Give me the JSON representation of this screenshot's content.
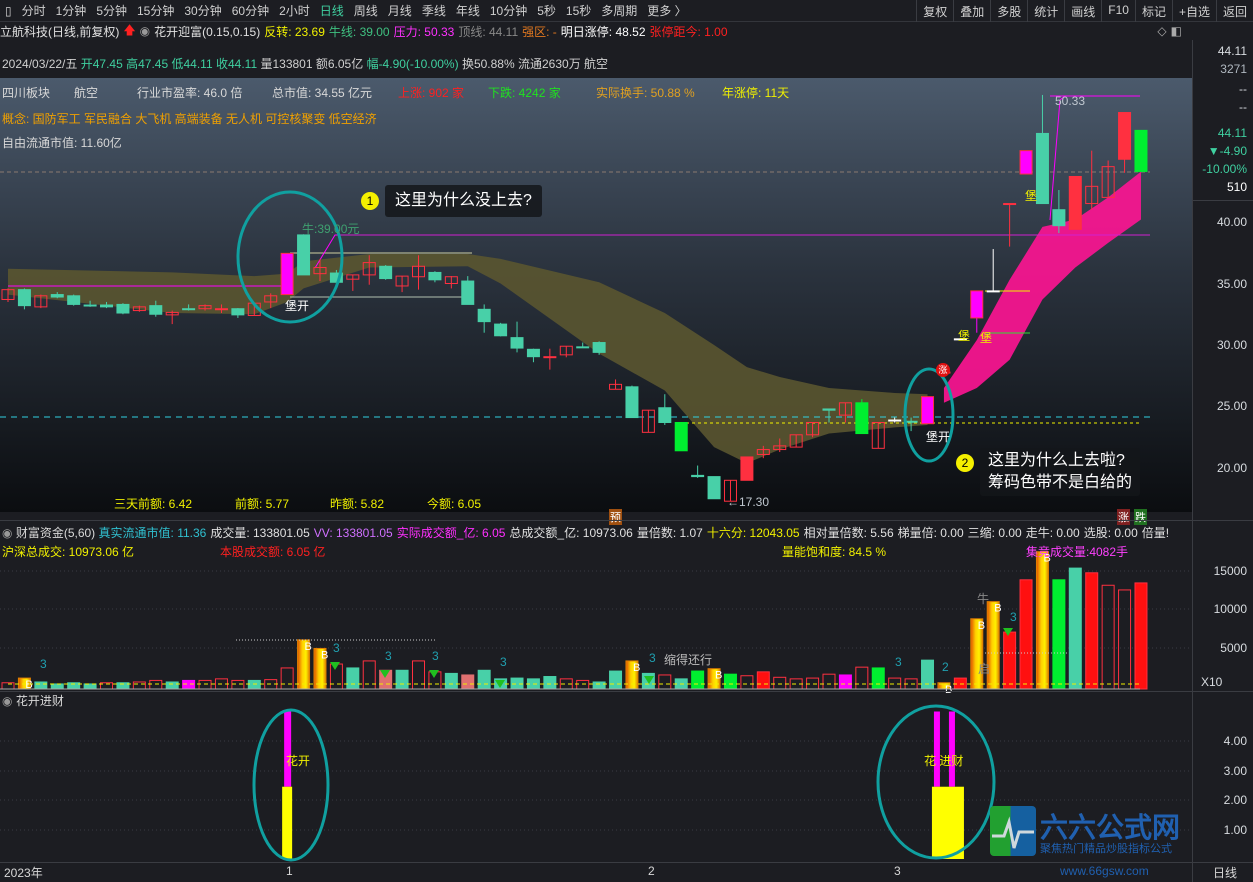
{
  "toolbar": {
    "periods": [
      "分时",
      "1分钟",
      "5分钟",
      "15分钟",
      "30分钟",
      "60分钟",
      "2小时",
      "日线",
      "周线",
      "月线",
      "季线",
      "年线",
      "10分钟",
      "5秒",
      "15秒",
      "多周期",
      "更多 〉"
    ],
    "active": "日线",
    "right_buttons": [
      "复权",
      "叠加",
      "多股",
      "统计",
      "画线",
      "F10",
      "标记",
      "+自选",
      "返回"
    ]
  },
  "info": {
    "stock": "立航科技(日线,前复权)",
    "indicator": "花开迎富(0.15,0.15)",
    "items": [
      {
        "label": "反转: 23.69",
        "color": "#f0f000"
      },
      {
        "label": "牛线: 39.00",
        "color": "#3fc080"
      },
      {
        "label": "压力: 50.33",
        "color": "#ff30ff"
      },
      {
        "label": "顶线: 44.11",
        "color": "#888888"
      },
      {
        "label": "强区: -",
        "color": "#e07820"
      },
      {
        "label": "明日涨停: 48.52",
        "color": "#ffffff"
      },
      {
        "label": "张停距今: 1.00",
        "color": "#ff2020"
      }
    ]
  },
  "dateline": {
    "date": "2024/03/22/五",
    "open": "开47.45",
    "high": "高47.45",
    "low": "低44.11",
    "close": "收44.11",
    "vol": "量133801",
    "amt": "额6.05亿",
    "chg": "幅-4.90(-10.00%)",
    "turn": "换50.88%",
    "float": "流通2630万",
    "sector": "航空"
  },
  "stats": {
    "region": "四川板块",
    "industry": "航空",
    "pe": "行业市盈率:  46.0 倍",
    "mcap": "总市值:  34.55 亿元",
    "up": "上涨:  902 家",
    "down": "下跌:  4242 家",
    "turnover": "实际换手: 50.88 %",
    "limitdays": "年涨停: 11天",
    "concepts": "概念:   国防军工 军民融合 大飞机 高端装备 无人机 可控核聚变 低空经济",
    "freefloat": "自由流通市值:  11.60亿"
  },
  "amounts": [
    "三天前额: 6.42",
    "前额: 5.77",
    "昨额: 5.82",
    "今额: 6.05"
  ],
  "annotations": {
    "q1_num": "1",
    "q1": "这里为什么没上去?",
    "q2_num": "2",
    "q2_line1": "这里为什么上去啦?",
    "q2_line2": "筹码色带不是白给的",
    "bull_label": "牛:39.00元",
    "high_label": "50.33",
    "low_label": "←17.30",
    "open1": "堡开",
    "open2": "堡开",
    "fort1": "堡",
    "fort2": "堡",
    "fort3": "堡",
    "turn_num": "50",
    "turn": "转",
    "pre": "预",
    "up": "涨",
    "down": "跌",
    "limit_icon": "涨"
  },
  "right_panel": {
    "price": "44.11",
    "vol": "3271",
    "a": "--",
    "b": "--",
    "last": "44.11",
    "chg": "▼-4.90",
    "pct": "-10.00%",
    "n": "510"
  },
  "price_axis": [
    "40.00",
    "35.00",
    "30.00",
    "25.00",
    "20.00"
  ],
  "vol_header": {
    "name": "财富资金(5,60)",
    "items": [
      {
        "t": "真实流通市值: 11.36",
        "c": "#30c0d0"
      },
      {
        "t": "成交量: 133801.05",
        "c": "#e0e0e0"
      },
      {
        "t": "VV: 133801.05",
        "c": "#d070ff"
      },
      {
        "t": "实际成交额_亿: 6.05",
        "c": "#ff30ff"
      },
      {
        "t": "总成交额_亿: 10973.06",
        "c": "#e0e0e0"
      },
      {
        "t": "量倍数: 1.07",
        "c": "#e0e0e0"
      },
      {
        "t": "十六分: 12043.05",
        "c": "#f0f000"
      },
      {
        "t": "相对量倍数: 5.56",
        "c": "#e0e0e0"
      },
      {
        "t": "梯量倍: 0.00",
        "c": "#e0e0e0"
      },
      {
        "t": "三缩: 0.00",
        "c": "#e0e0e0"
      },
      {
        "t": "走牛: 0.00",
        "c": "#e0e0e0"
      },
      {
        "t": "选股: 0.00",
        "c": "#e0e0e0"
      },
      {
        "t": "倍量!",
        "c": "#e0e0e0"
      }
    ],
    "line2": [
      {
        "t": "沪深总成交:  10973.06 亿",
        "c": "#f0f000"
      },
      {
        "t": "本股成交额:  6.05 亿",
        "c": "#ff2020"
      },
      {
        "t": "量能饱和度: 84.5 %",
        "c": "#f0f000"
      },
      {
        "t": "集竞成交量:4082手",
        "c": "#ff40ff"
      }
    ]
  },
  "vol_axis": [
    "15000",
    "10000",
    "5000",
    "X10"
  ],
  "vol_labels": {
    "shrink": "缩得还行",
    "bull": "牛",
    "start": "启",
    "two": "2",
    "b": "B",
    "three": "3"
  },
  "sub": {
    "title": "花开进财",
    "label1": "花开",
    "label2": "花 进财",
    "axis": [
      "4.00",
      "3.00",
      "2.00",
      "1.00"
    ]
  },
  "xaxis": [
    "2023年",
    "1",
    "2",
    "3",
    "日线"
  ],
  "logo": {
    "name": "六六公式网",
    "slogan": "聚焦热门精品炒股指标公式",
    "url": "www.66gsw.com"
  },
  "colors": {
    "up": "#ff3040",
    "down": "#48d0a8",
    "bright_down": "#00ee30",
    "signal": "#ff00ff",
    "chip_band": "#5a5530",
    "pink_band": "#ff1493",
    "circle": "#10a0a0"
  },
  "chart_data": {
    "type": "candlestick",
    "price_range": [
      17,
      52
    ],
    "candles": [
      [
        33.7,
        34.6,
        33.5,
        34.5,
        "u"
      ],
      [
        34.5,
        34.6,
        32.9,
        33.2,
        "d"
      ],
      [
        33.1,
        34.1,
        33.0,
        34.0,
        "u"
      ],
      [
        34.1,
        34.3,
        33.8,
        33.9,
        "d"
      ],
      [
        34.0,
        34.1,
        33.2,
        33.3,
        "d"
      ],
      [
        33.25,
        33.6,
        33.1,
        33.2,
        "d"
      ],
      [
        33.25,
        33.5,
        33.0,
        33.1,
        "d"
      ],
      [
        33.3,
        33.4,
        32.5,
        32.6,
        "d"
      ],
      [
        32.8,
        33.2,
        32.7,
        33.1,
        "u"
      ],
      [
        33.2,
        33.6,
        32.3,
        32.5,
        "d"
      ],
      [
        32.45,
        32.8,
        31.7,
        32.65,
        "u"
      ],
      [
        32.95,
        33.3,
        32.8,
        32.9,
        "d"
      ],
      [
        32.95,
        33.3,
        32.8,
        33.2,
        "u"
      ],
      [
        32.9,
        33.3,
        32.6,
        32.95,
        "u"
      ],
      [
        32.95,
        33.0,
        32.2,
        32.45,
        "d"
      ],
      [
        32.4,
        33.4,
        32.4,
        33.4,
        "u"
      ],
      [
        33.5,
        34.2,
        33.0,
        34.0,
        "u"
      ],
      [
        34.1,
        37.45,
        34.1,
        37.45,
        "m"
      ],
      [
        38.95,
        39.0,
        35.7,
        35.7,
        "d"
      ],
      [
        35.8,
        37.0,
        35.2,
        36.3,
        "u"
      ],
      [
        35.85,
        36.1,
        34.6,
        35.1,
        "d"
      ],
      [
        35.35,
        35.7,
        34.4,
        35.7,
        "u"
      ],
      [
        35.7,
        37.3,
        34.9,
        36.7,
        "u"
      ],
      [
        36.4,
        36.5,
        35.3,
        35.4,
        "d"
      ],
      [
        34.8,
        35.6,
        34.3,
        35.6,
        "u"
      ],
      [
        35.55,
        37.3,
        34.5,
        36.4,
        "u"
      ],
      [
        35.9,
        36.0,
        35.1,
        35.3,
        "d"
      ],
      [
        35.0,
        35.6,
        34.6,
        35.55,
        "u"
      ],
      [
        35.2,
        35.6,
        33.3,
        33.3,
        "d"
      ],
      [
        32.9,
        33.3,
        31.0,
        31.9,
        "d"
      ],
      [
        31.7,
        31.8,
        30.7,
        30.75,
        "d"
      ],
      [
        30.6,
        31.9,
        29.4,
        29.75,
        "d"
      ],
      [
        29.65,
        29.7,
        28.6,
        29.05,
        "d"
      ],
      [
        29.0,
        29.7,
        28.0,
        29.05,
        "u"
      ],
      [
        29.2,
        29.9,
        29.0,
        29.9,
        "u"
      ],
      [
        29.85,
        30.2,
        29.8,
        29.8,
        "d"
      ],
      [
        30.2,
        30.3,
        29.2,
        29.4,
        "d"
      ],
      [
        26.4,
        27.2,
        26.4,
        26.8,
        "u"
      ],
      [
        26.6,
        26.7,
        24.1,
        24.1,
        "d"
      ],
      [
        22.9,
        24.7,
        22.9,
        24.7,
        "u"
      ],
      [
        24.9,
        26.0,
        23.5,
        23.7,
        "d"
      ],
      [
        23.7,
        23.7,
        21.4,
        21.4,
        "D"
      ],
      [
        19.4,
        20.2,
        19.2,
        19.3,
        "d"
      ],
      [
        19.3,
        19.3,
        17.5,
        17.5,
        "d"
      ],
      [
        17.3,
        19.0,
        17.3,
        19.0,
        "u"
      ],
      [
        19.0,
        20.9,
        19.0,
        20.9,
        "U"
      ],
      [
        21.1,
        21.8,
        20.8,
        21.5,
        "u"
      ],
      [
        21.5,
        22.4,
        21.3,
        21.8,
        "u"
      ],
      [
        21.7,
        22.7,
        21.7,
        22.7,
        "u"
      ],
      [
        22.7,
        23.7,
        22.5,
        23.7,
        "u"
      ],
      [
        24.7,
        24.8,
        23.7,
        24.8,
        "d"
      ],
      [
        24.3,
        25.3,
        23.7,
        25.3,
        "u"
      ],
      [
        25.3,
        25.6,
        22.8,
        22.8,
        "D"
      ],
      [
        21.6,
        23.7,
        21.6,
        23.7,
        "u"
      ],
      [
        23.85,
        24.1,
        23.7,
        23.9,
        "w"
      ],
      [
        23.8,
        24.1,
        23.0,
        23.75,
        "d"
      ],
      [
        23.6,
        25.8,
        23.6,
        25.8,
        "m"
      ],
      [
        27.8,
        27.8,
        27.8,
        27.8,
        "U"
      ],
      [
        30.5,
        30.5,
        30.5,
        30.5,
        "w"
      ],
      [
        32.2,
        34.4,
        31.0,
        34.4,
        "m"
      ],
      [
        34.4,
        37.8,
        34.4,
        34.4,
        "w"
      ],
      [
        41.5,
        41.5,
        38.0,
        41.5,
        "U"
      ],
      [
        43.9,
        45.8,
        43.9,
        45.8,
        "m"
      ],
      [
        47.2,
        50.33,
        41.5,
        41.5,
        "d"
      ],
      [
        41.0,
        42.6,
        39.1,
        39.7,
        "d"
      ],
      [
        39.4,
        43.7,
        39.4,
        43.7,
        "U"
      ],
      [
        41.5,
        45.8,
        41.0,
        42.9,
        "u"
      ],
      [
        42.0,
        45.0,
        42.0,
        44.5,
        "u"
      ],
      [
        45.1,
        48.9,
        44.0,
        48.9,
        "U"
      ],
      [
        47.45,
        47.45,
        44.11,
        44.11,
        "D"
      ]
    ],
    "chip_band": {
      "index": [
        0,
        10,
        15,
        17,
        18,
        22,
        28,
        30,
        36,
        40,
        43,
        45,
        47,
        50,
        54,
        56
      ],
      "upper": [
        36.2,
        35.9,
        35.6,
        35.8,
        36.8,
        37.4,
        37.4,
        37.0,
        35.1,
        32.6,
        30.0,
        28.2,
        27.4,
        26.5,
        26.1,
        26.0
      ],
      "lower": [
        34.1,
        32.6,
        32.5,
        33.5,
        34.6,
        36.3,
        36.4,
        35.0,
        29.3,
        26.3,
        21.7,
        20.4,
        21.5,
        22.8,
        23.3,
        23.5
      ]
    },
    "pink_band": {
      "index": [
        57,
        59,
        61,
        63,
        65,
        67,
        69
      ],
      "upper": [
        26.5,
        30.4,
        35.3,
        39.6,
        40.2,
        42.0,
        44.1
      ],
      "lower": [
        25.3,
        26.5,
        28.8,
        33.7,
        36.3,
        38.3,
        40.2
      ]
    },
    "volume": [
      800,
      1400,
      900,
      650,
      800,
      650,
      800,
      800,
      900,
      1100,
      900,
      1100,
      1100,
      1300,
      1100,
      1100,
      1200,
      2700,
      6300,
      5200,
      3200,
      2700,
      3600,
      2400,
      2400,
      3600,
      2200,
      2000,
      1800,
      2400,
      1300,
      1400,
      1300,
      1600,
      1300,
      1100,
      900,
      2300,
      3600,
      2000,
      1800,
      1300,
      2300,
      2600,
      1900,
      1700,
      2200,
      1500,
      1300,
      1400,
      1900,
      1800,
      2800,
      2700,
      1400,
      1300,
      3700,
      800,
      1400,
      9000,
      11200,
      7300,
      14000,
      17600,
      14000,
      15500,
      14900,
      13300,
      12700,
      13600
    ],
    "volume_type": "uydddduduudmuuuduuyyudusduudsddddduuddydudDyDuUuuuumuDuudyUyyUUyDdUuuUD",
    "volume_range": [
      0,
      18000
    ],
    "sub_bars": [
      {
        "index": 17,
        "yellow": 2.45,
        "magenta": 5.0
      },
      {
        "index": 57,
        "yellow": 2.45,
        "magenta": 5.0
      }
    ],
    "sub_range": [
      0,
      5.0
    ]
  }
}
